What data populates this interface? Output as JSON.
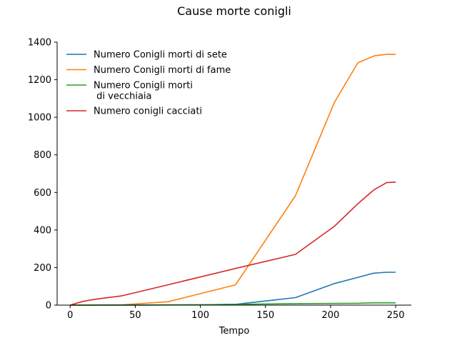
{
  "chart_data": {
    "type": "line",
    "title": "Cause morte conigli",
    "xlabel": "Tempo",
    "ylabel": "",
    "xlim": [
      -10,
      262
    ],
    "ylim": [
      0,
      1400
    ],
    "xticks": [
      0,
      50,
      100,
      150,
      200,
      250
    ],
    "yticks": [
      0,
      200,
      400,
      600,
      800,
      1000,
      1200,
      1400
    ],
    "legend_position": "top-left",
    "series": [
      {
        "name": "Numero Conigli morti di sete",
        "color": "#1f77b4",
        "x": [
          0,
          50,
          100,
          128,
          150,
          173,
          203,
          222,
          233,
          243,
          250
        ],
        "y": [
          0,
          0,
          2,
          5,
          22,
          40,
          115,
          150,
          170,
          175,
          175
        ]
      },
      {
        "name": "Numero Conigli morti di fame",
        "color": "#ff7f0e",
        "x": [
          0,
          40,
          75,
          127,
          173,
          203,
          221,
          234,
          243,
          250
        ],
        "y": [
          0,
          2,
          18,
          108,
          582,
          1080,
          1290,
          1328,
          1335,
          1335
        ]
      },
      {
        "name": "Numero Conigli morti\n di vecchiaia",
        "color": "#2ca02c",
        "x": [
          0,
          100,
          173,
          220,
          233,
          250
        ],
        "y": [
          0,
          2,
          8,
          10,
          12,
          12
        ]
      },
      {
        "name": "Numero conigli cacciati",
        "color": "#d62728",
        "x": [
          0,
          10,
          20,
          40,
          75,
          127,
          173,
          203,
          221,
          233,
          243,
          250
        ],
        "y": [
          0,
          20,
          32,
          50,
          108,
          195,
          270,
          420,
          540,
          612,
          652,
          655
        ]
      }
    ]
  }
}
